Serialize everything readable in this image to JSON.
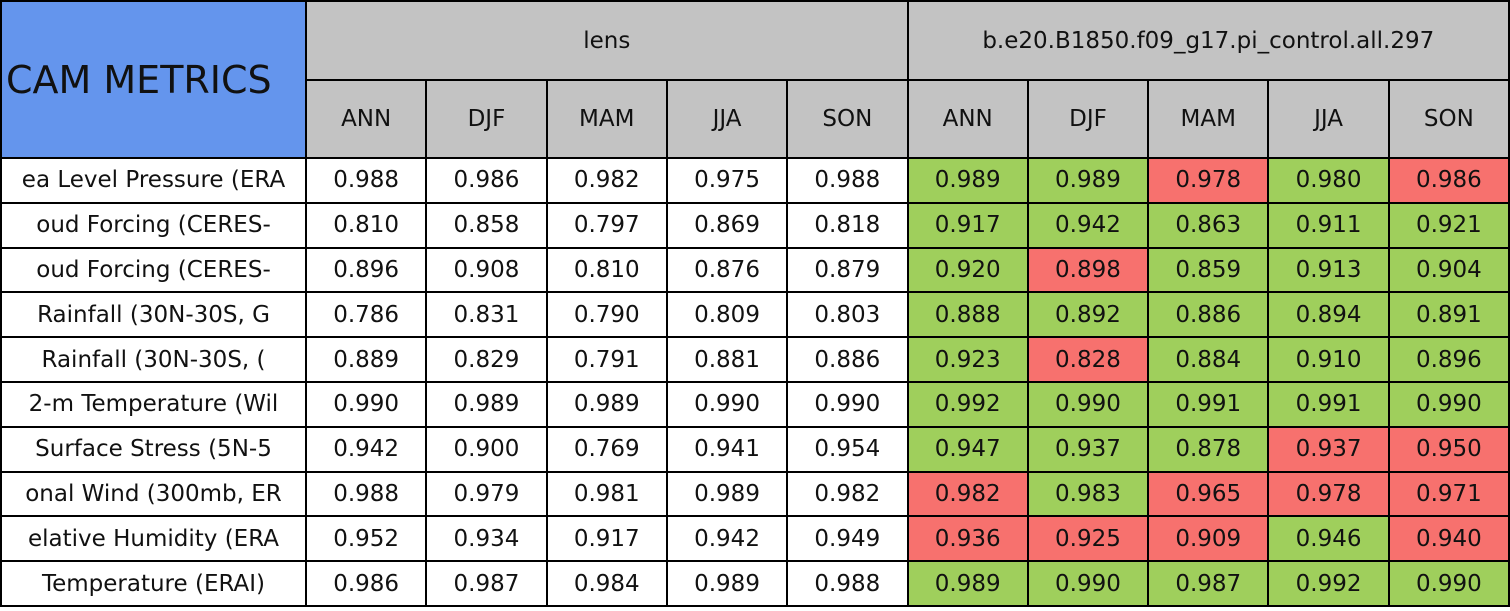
{
  "header": {
    "title": "CAM METRICS",
    "groups": [
      "lens",
      "b.e20.B1850.f09_g17.pi_control.all.297"
    ],
    "seasons": [
      "ANN",
      "DJF",
      "MAM",
      "JJA",
      "SON"
    ]
  },
  "colors": {
    "green": "#9fcf5c",
    "red": "#f7716e"
  },
  "rows": [
    {
      "label": "ea Level Pressure (ERA",
      "lens": [
        "0.988",
        "0.986",
        "0.982",
        "0.975",
        "0.988"
      ],
      "control": [
        "0.989",
        "0.989",
        "0.978",
        "0.980",
        "0.986"
      ],
      "control_colors": [
        "green",
        "green",
        "red",
        "green",
        "red"
      ]
    },
    {
      "label": "oud Forcing (CERES-",
      "lens": [
        "0.810",
        "0.858",
        "0.797",
        "0.869",
        "0.818"
      ],
      "control": [
        "0.917",
        "0.942",
        "0.863",
        "0.911",
        "0.921"
      ],
      "control_colors": [
        "green",
        "green",
        "green",
        "green",
        "green"
      ]
    },
    {
      "label": "oud Forcing (CERES-",
      "lens": [
        "0.896",
        "0.908",
        "0.810",
        "0.876",
        "0.879"
      ],
      "control": [
        "0.920",
        "0.898",
        "0.859",
        "0.913",
        "0.904"
      ],
      "control_colors": [
        "green",
        "red",
        "green",
        "green",
        "green"
      ]
    },
    {
      "label": "Rainfall (30N-30S, G",
      "lens": [
        "0.786",
        "0.831",
        "0.790",
        "0.809",
        "0.803"
      ],
      "control": [
        "0.888",
        "0.892",
        "0.886",
        "0.894",
        "0.891"
      ],
      "control_colors": [
        "green",
        "green",
        "green",
        "green",
        "green"
      ]
    },
    {
      "label": "Rainfall (30N-30S, (",
      "lens": [
        "0.889",
        "0.829",
        "0.791",
        "0.881",
        "0.886"
      ],
      "control": [
        "0.923",
        "0.828",
        "0.884",
        "0.910",
        "0.896"
      ],
      "control_colors": [
        "green",
        "red",
        "green",
        "green",
        "green"
      ]
    },
    {
      "label": "2-m Temperature (Wil",
      "lens": [
        "0.990",
        "0.989",
        "0.989",
        "0.990",
        "0.990"
      ],
      "control": [
        "0.992",
        "0.990",
        "0.991",
        "0.991",
        "0.990"
      ],
      "control_colors": [
        "green",
        "green",
        "green",
        "green",
        "green"
      ]
    },
    {
      "label": "Surface Stress (5N-5",
      "lens": [
        "0.942",
        "0.900",
        "0.769",
        "0.941",
        "0.954"
      ],
      "control": [
        "0.947",
        "0.937",
        "0.878",
        "0.937",
        "0.950"
      ],
      "control_colors": [
        "green",
        "green",
        "green",
        "red",
        "red"
      ]
    },
    {
      "label": "onal Wind (300mb, ER",
      "lens": [
        "0.988",
        "0.979",
        "0.981",
        "0.989",
        "0.982"
      ],
      "control": [
        "0.982",
        "0.983",
        "0.965",
        "0.978",
        "0.971"
      ],
      "control_colors": [
        "red",
        "green",
        "red",
        "red",
        "red"
      ]
    },
    {
      "label": "elative Humidity (ERA",
      "lens": [
        "0.952",
        "0.934",
        "0.917",
        "0.942",
        "0.949"
      ],
      "control": [
        "0.936",
        "0.925",
        "0.909",
        "0.946",
        "0.940"
      ],
      "control_colors": [
        "red",
        "red",
        "red",
        "green",
        "red"
      ]
    },
    {
      "label": "Temperature (ERAI)",
      "lens": [
        "0.986",
        "0.987",
        "0.984",
        "0.989",
        "0.988"
      ],
      "control": [
        "0.989",
        "0.990",
        "0.987",
        "0.992",
        "0.990"
      ],
      "control_colors": [
        "green",
        "green",
        "green",
        "green",
        "green"
      ]
    }
  ]
}
